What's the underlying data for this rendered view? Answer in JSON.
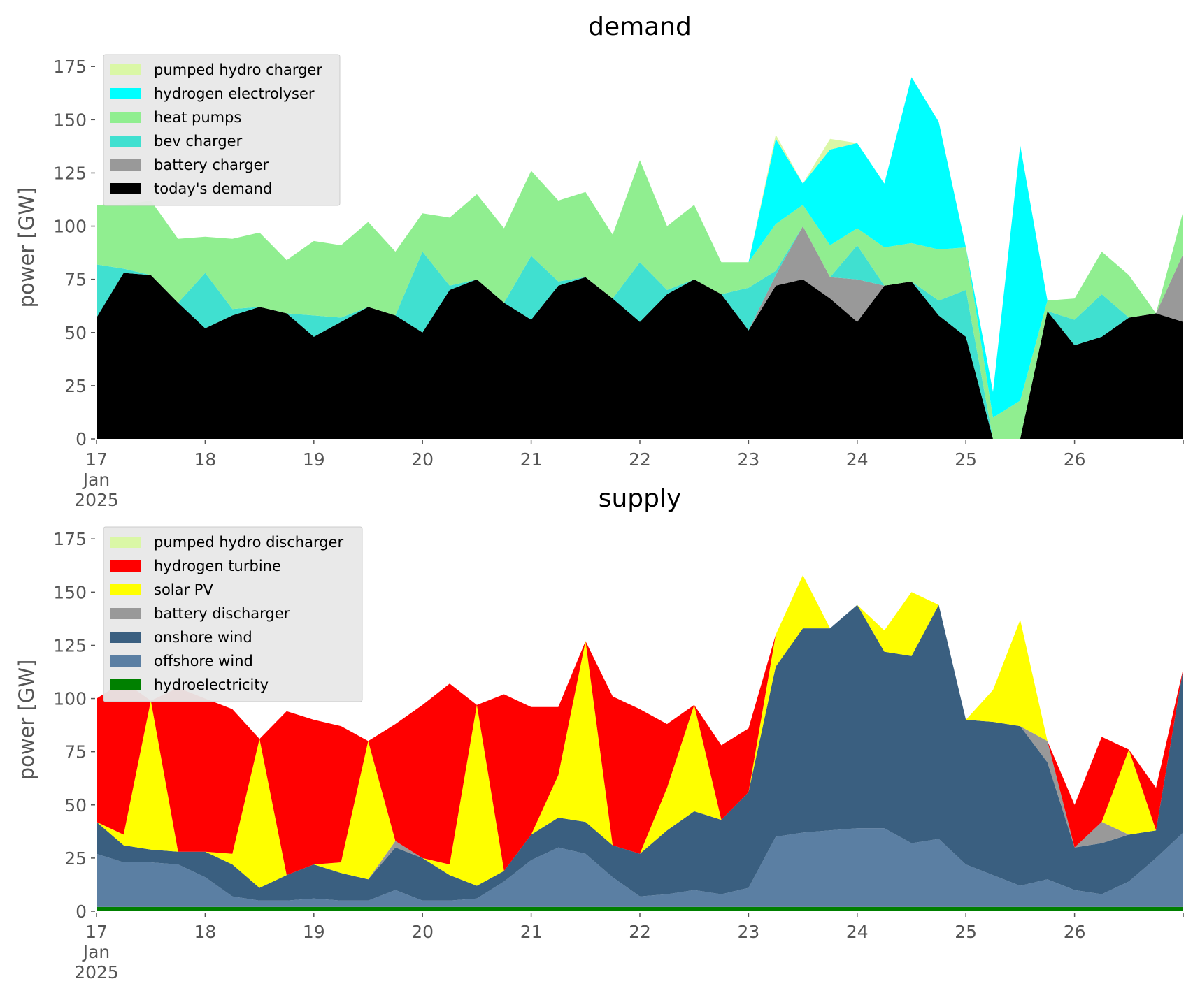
{
  "chart_data": [
    {
      "type": "area",
      "stacked": true,
      "title": "demand",
      "xlabel": "",
      "ylabel": "power [GW]",
      "ylim": [
        0,
        180
      ],
      "yticks": [
        "0",
        "25",
        "50",
        "75",
        "100",
        "125",
        "150",
        "175"
      ],
      "xlim": [
        "2025-01-17 00:00",
        "2025-01-27 00:00"
      ],
      "xticks": [
        {
          "label": "17",
          "sub": [
            "Jan",
            "2025"
          ]
        },
        {
          "label": "18"
        },
        {
          "label": "19"
        },
        {
          "label": "20"
        },
        {
          "label": "21"
        },
        {
          "label": "22"
        },
        {
          "label": "23"
        },
        {
          "label": "24"
        },
        {
          "label": "25"
        },
        {
          "label": "26"
        }
      ],
      "grid": false,
      "legend_position": "top-left",
      "x": [
        "2025-01-17 00:00",
        "2025-01-17 06:00",
        "2025-01-17 12:00",
        "2025-01-17 18:00",
        "2025-01-18 00:00",
        "2025-01-18 06:00",
        "2025-01-18 12:00",
        "2025-01-18 18:00",
        "2025-01-19 00:00",
        "2025-01-19 06:00",
        "2025-01-19 12:00",
        "2025-01-19 18:00",
        "2025-01-20 00:00",
        "2025-01-20 06:00",
        "2025-01-20 12:00",
        "2025-01-20 18:00",
        "2025-01-21 00:00",
        "2025-01-21 06:00",
        "2025-01-21 12:00",
        "2025-01-21 18:00",
        "2025-01-22 00:00",
        "2025-01-22 06:00",
        "2025-01-22 12:00",
        "2025-01-22 18:00",
        "2025-01-23 00:00",
        "2025-01-23 06:00",
        "2025-01-23 12:00",
        "2025-01-23 18:00",
        "2025-01-24 00:00",
        "2025-01-24 06:00",
        "2025-01-24 12:00",
        "2025-01-24 18:00",
        "2025-01-25 00:00",
        "2025-01-25 06:00",
        "2025-01-25 12:00",
        "2025-01-25 18:00",
        "2025-01-26 00:00",
        "2025-01-26 06:00",
        "2025-01-26 12:00",
        "2025-01-26 18:00",
        "2025-01-27 00:00"
      ],
      "series": [
        {
          "name": "today's demand",
          "color": "#000000",
          "values": [
            57,
            78,
            77,
            64,
            52,
            58,
            62,
            59,
            48,
            55,
            62,
            58,
            50,
            70,
            75,
            64,
            56,
            72,
            76,
            66,
            55,
            68,
            75,
            68,
            51,
            72,
            75,
            66,
            55,
            72,
            74,
            58,
            48,
            0,
            0,
            60,
            44,
            48,
            57,
            59,
            55
          ]
        },
        {
          "name": "battery charger",
          "color": "#999999",
          "values": [
            0,
            0,
            0,
            0,
            0,
            0,
            0,
            0,
            0,
            0,
            0,
            0,
            0,
            0,
            0,
            0,
            0,
            0,
            0,
            0,
            0,
            0,
            0,
            0,
            0,
            5,
            25,
            10,
            20,
            0,
            0,
            0,
            0,
            0,
            0,
            0,
            0,
            0,
            0,
            0,
            32
          ]
        },
        {
          "name": "bev charger",
          "color": "#40E0D0",
          "values": [
            25,
            2,
            0,
            0,
            26,
            3,
            0,
            0,
            10,
            2,
            0,
            0,
            38,
            2,
            0,
            0,
            30,
            2,
            0,
            0,
            28,
            2,
            0,
            0,
            20,
            2,
            0,
            0,
            16,
            0,
            0,
            7,
            22,
            0,
            0,
            0,
            12,
            20,
            0,
            0,
            0
          ]
        },
        {
          "name": "heat pumps",
          "color": "#90EE90",
          "values": [
            28,
            30,
            35,
            30,
            17,
            33,
            35,
            25,
            35,
            34,
            40,
            30,
            18,
            32,
            40,
            35,
            40,
            38,
            40,
            30,
            48,
            30,
            35,
            15,
            12,
            22,
            10,
            15,
            8,
            18,
            18,
            24,
            20,
            10,
            18,
            5,
            10,
            20,
            20,
            0,
            20
          ]
        },
        {
          "name": "hydrogen electrolyser",
          "color": "#00FFFF",
          "values": [
            0,
            0,
            0,
            0,
            0,
            0,
            0,
            0,
            0,
            0,
            0,
            0,
            0,
            0,
            0,
            0,
            0,
            0,
            0,
            0,
            0,
            0,
            0,
            0,
            0,
            40,
            10,
            45,
            40,
            30,
            78,
            60,
            0,
            12,
            120,
            0,
            0,
            0,
            0,
            0,
            0
          ]
        },
        {
          "name": "pumped hydro charger",
          "color": "#DAF7A6",
          "values": [
            0,
            0,
            0,
            0,
            0,
            0,
            0,
            0,
            0,
            0,
            0,
            0,
            0,
            0,
            0,
            0,
            0,
            0,
            0,
            0,
            0,
            0,
            0,
            0,
            0,
            2,
            0,
            5,
            0,
            0,
            0,
            0,
            0,
            0,
            0,
            0,
            0,
            0,
            0,
            0,
            0
          ]
        }
      ]
    },
    {
      "type": "area",
      "stacked": true,
      "title": "supply",
      "xlabel": "",
      "ylabel": "power [GW]",
      "ylim": [
        0,
        180
      ],
      "yticks": [
        "0",
        "25",
        "50",
        "75",
        "100",
        "125",
        "150",
        "175"
      ],
      "xlim": [
        "2025-01-17 00:00",
        "2025-01-27 00:00"
      ],
      "xticks": [
        {
          "label": "17",
          "sub": [
            "Jan",
            "2025"
          ]
        },
        {
          "label": "18"
        },
        {
          "label": "19"
        },
        {
          "label": "20"
        },
        {
          "label": "21"
        },
        {
          "label": "22"
        },
        {
          "label": "23"
        },
        {
          "label": "24"
        },
        {
          "label": "25"
        },
        {
          "label": "26"
        }
      ],
      "grid": false,
      "legend_position": "top-left",
      "x": [
        "2025-01-17 00:00",
        "2025-01-17 06:00",
        "2025-01-17 12:00",
        "2025-01-17 18:00",
        "2025-01-18 00:00",
        "2025-01-18 06:00",
        "2025-01-18 12:00",
        "2025-01-18 18:00",
        "2025-01-19 00:00",
        "2025-01-19 06:00",
        "2025-01-19 12:00",
        "2025-01-19 18:00",
        "2025-01-20 00:00",
        "2025-01-20 06:00",
        "2025-01-20 12:00",
        "2025-01-20 18:00",
        "2025-01-21 00:00",
        "2025-01-21 06:00",
        "2025-01-21 12:00",
        "2025-01-21 18:00",
        "2025-01-22 00:00",
        "2025-01-22 06:00",
        "2025-01-22 12:00",
        "2025-01-22 18:00",
        "2025-01-23 00:00",
        "2025-01-23 06:00",
        "2025-01-23 12:00",
        "2025-01-23 18:00",
        "2025-01-24 00:00",
        "2025-01-24 06:00",
        "2025-01-24 12:00",
        "2025-01-24 18:00",
        "2025-01-25 00:00",
        "2025-01-25 06:00",
        "2025-01-25 12:00",
        "2025-01-25 18:00",
        "2025-01-26 00:00",
        "2025-01-26 06:00",
        "2025-01-26 12:00",
        "2025-01-26 18:00",
        "2025-01-27 00:00"
      ],
      "series": [
        {
          "name": "hydroelectricity",
          "color": "#008000",
          "values": [
            2,
            2,
            2,
            2,
            2,
            2,
            2,
            2,
            2,
            2,
            2,
            2,
            2,
            2,
            2,
            2,
            2,
            2,
            2,
            2,
            2,
            2,
            2,
            2,
            2,
            2,
            2,
            2,
            2,
            2,
            2,
            2,
            2,
            2,
            2,
            2,
            2,
            2,
            2,
            2,
            2
          ]
        },
        {
          "name": "offshore wind",
          "color": "#5B7FA3",
          "values": [
            25,
            21,
            21,
            20,
            14,
            5,
            3,
            3,
            4,
            3,
            3,
            8,
            3,
            3,
            4,
            12,
            22,
            28,
            25,
            14,
            5,
            6,
            8,
            6,
            9,
            33,
            35,
            36,
            37,
            37,
            30,
            32,
            20,
            15,
            10,
            13,
            8,
            6,
            12,
            23,
            35
          ]
        },
        {
          "name": "onshore wind",
          "color": "#3A5F80",
          "values": [
            15,
            8,
            6,
            6,
            12,
            15,
            6,
            12,
            16,
            13,
            10,
            20,
            20,
            12,
            6,
            5,
            12,
            14,
            15,
            15,
            20,
            30,
            37,
            35,
            45,
            80,
            96,
            95,
            105,
            83,
            88,
            110,
            68,
            72,
            75,
            55,
            20,
            24,
            22,
            13,
            77
          ]
        },
        {
          "name": "battery discharger",
          "color": "#999999",
          "values": [
            0,
            0,
            0,
            0,
            0,
            0,
            0,
            0,
            0,
            0,
            0,
            3,
            0,
            0,
            0,
            0,
            0,
            0,
            0,
            0,
            0,
            0,
            0,
            0,
            0,
            0,
            0,
            0,
            0,
            0,
            0,
            0,
            0,
            0,
            0,
            10,
            0,
            10,
            0,
            0,
            0
          ]
        },
        {
          "name": "solar PV",
          "color": "#FFFF00",
          "values": [
            0,
            5,
            70,
            0,
            0,
            5,
            70,
            0,
            0,
            5,
            65,
            0,
            0,
            5,
            85,
            0,
            0,
            20,
            85,
            0,
            0,
            20,
            50,
            0,
            0,
            15,
            25,
            0,
            0,
            10,
            30,
            0,
            0,
            15,
            50,
            0,
            0,
            0,
            40,
            0,
            0
          ]
        },
        {
          "name": "hydrogen turbine",
          "color": "#FF0000",
          "values": [
            58,
            72,
            0,
            77,
            72,
            68,
            0,
            77,
            68,
            64,
            0,
            55,
            72,
            85,
            0,
            83,
            60,
            32,
            0,
            70,
            68,
            30,
            0,
            35,
            30,
            0,
            0,
            0,
            0,
            0,
            0,
            0,
            0,
            0,
            0,
            0,
            20,
            40,
            0,
            20,
            0
          ]
        },
        {
          "name": "pumped hydro discharger",
          "color": "#DAF7A6",
          "values": [
            0,
            0,
            0,
            0,
            0,
            0,
            0,
            0,
            0,
            0,
            0,
            0,
            0,
            0,
            0,
            0,
            0,
            0,
            0,
            0,
            0,
            0,
            0,
            0,
            0,
            0,
            0,
            0,
            0,
            0,
            0,
            0,
            0,
            0,
            0,
            0,
            0,
            0,
            0,
            0,
            0
          ]
        }
      ]
    }
  ]
}
